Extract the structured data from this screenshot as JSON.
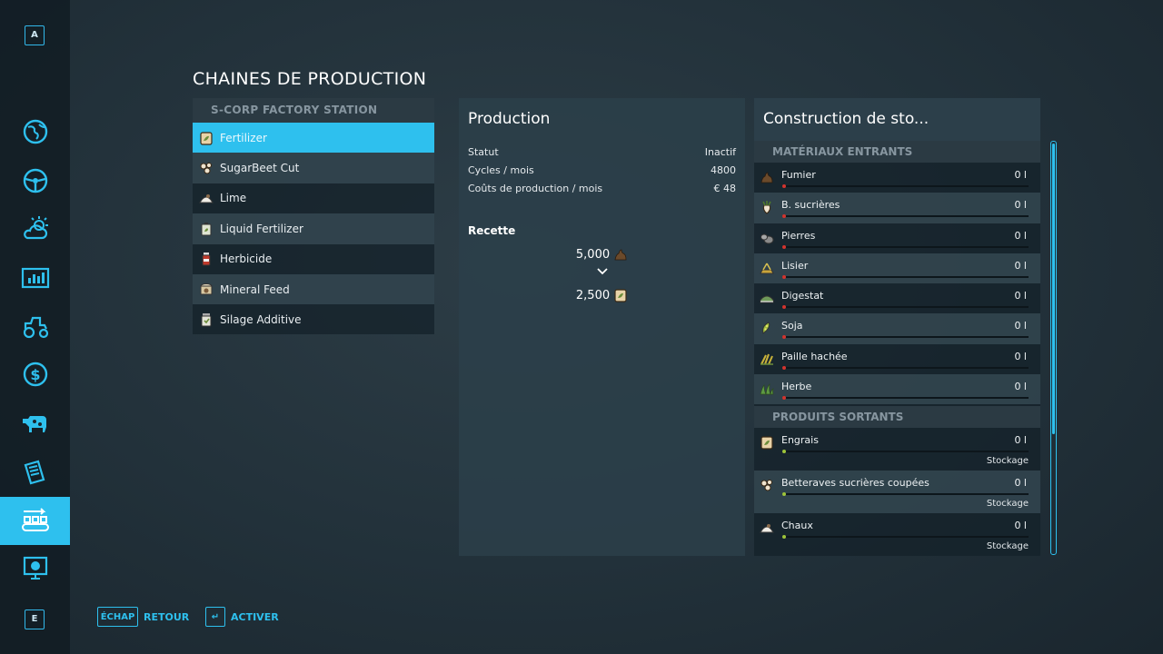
{
  "sidebar": {
    "top_key": "A",
    "bottom_key": "E",
    "items": [
      {
        "icon": "globe-icon"
      },
      {
        "icon": "steering-wheel-icon"
      },
      {
        "icon": "weather-icon"
      },
      {
        "icon": "statistics-icon"
      },
      {
        "icon": "tractor-icon"
      },
      {
        "icon": "dollar-icon"
      },
      {
        "icon": "cow-icon"
      },
      {
        "icon": "contracts-icon"
      },
      {
        "icon": "production-icon",
        "active": true
      },
      {
        "icon": "help-icon"
      }
    ]
  },
  "page_title": "CHAINES DE PRODUCTION",
  "production_list": {
    "header": "S-CORP FACTORY STATION",
    "items": [
      {
        "label": "Fertilizer",
        "icon": "fertilizer-bag-icon",
        "selected": true
      },
      {
        "label": "SugarBeet Cut",
        "icon": "sugarbeet-cut-icon"
      },
      {
        "label": "Lime",
        "icon": "lime-icon"
      },
      {
        "label": "Liquid Fertilizer",
        "icon": "liquid-fertilizer-icon"
      },
      {
        "label": "Herbicide",
        "icon": "herbicide-icon"
      },
      {
        "label": "Mineral Feed",
        "icon": "mineral-feed-icon"
      },
      {
        "label": "Silage Additive",
        "icon": "silage-additive-icon"
      }
    ]
  },
  "production_panel": {
    "title": "Production",
    "status_label": "Statut",
    "status_value": "Inactif",
    "cycles_label": "Cycles / mois",
    "cycles_value": "4800",
    "costs_label": "Coûts de production / mois",
    "costs_value": "€ 48",
    "recipe_label": "Recette",
    "recipe_input_amount": "5,000",
    "recipe_input_icon": "manure-icon",
    "recipe_output_amount": "2,500",
    "recipe_output_icon": "fertilizer-bag-icon"
  },
  "storage_panel": {
    "title": "Construction de sto...",
    "inputs_header": "MATÉRIAUX ENTRANTS",
    "inputs": [
      {
        "name": "Fumier",
        "value": "0 l",
        "icon": "manure-icon"
      },
      {
        "name": "B. sucrières",
        "value": "0 l",
        "icon": "sugarbeet-icon"
      },
      {
        "name": "Pierres",
        "value": "0 l",
        "icon": "stones-icon"
      },
      {
        "name": "Lisier",
        "value": "0 l",
        "icon": "slurry-icon"
      },
      {
        "name": "Digestat",
        "value": "0 l",
        "icon": "digestate-icon"
      },
      {
        "name": "Soja",
        "value": "0 l",
        "icon": "soybean-icon"
      },
      {
        "name": "Paille hachée",
        "value": "0 l",
        "icon": "chopped-straw-icon"
      },
      {
        "name": "Herbe",
        "value": "0 l",
        "icon": "grass-icon"
      }
    ],
    "outputs_header": "PRODUITS SORTANTS",
    "outputs": [
      {
        "name": "Engrais",
        "value": "0 l",
        "mode": "Stockage",
        "icon": "fertilizer-bag-icon"
      },
      {
        "name": "Betteraves sucrières coupées",
        "value": "0 l",
        "mode": "Stockage",
        "icon": "sugarbeet-cut-icon"
      },
      {
        "name": "Chaux",
        "value": "0 l",
        "mode": "Stockage",
        "icon": "lime-icon"
      }
    ]
  },
  "footer": {
    "back_key": "ÉCHAP",
    "back_label": "RETOUR",
    "activate_key": "↵",
    "activate_label": "ACTIVER"
  },
  "colors": {
    "accent": "#2ec0ee",
    "input_level": "#d3342e",
    "output_level": "#9ec43a"
  }
}
